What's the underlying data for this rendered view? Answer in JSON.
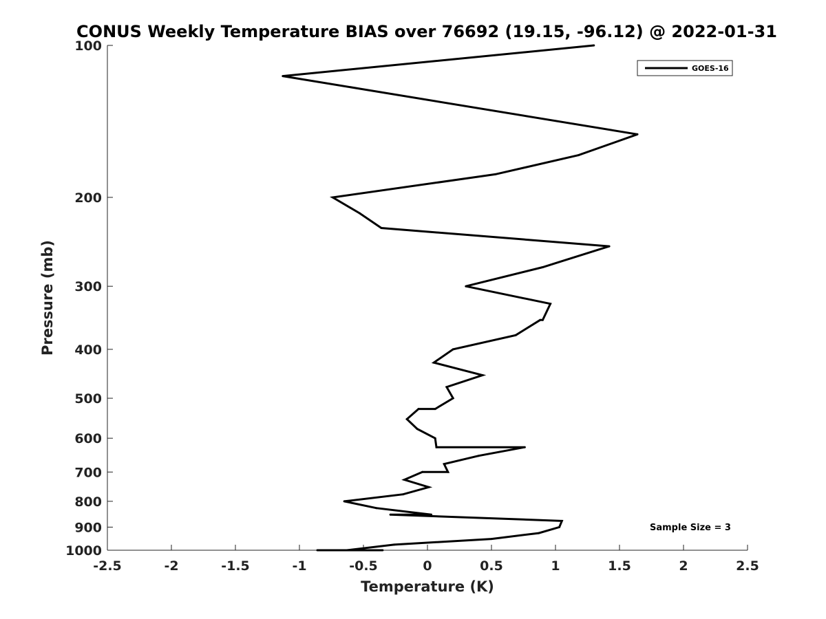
{
  "chart_data": {
    "type": "line",
    "title": "CONUS Weekly Temperature BIAS over 76692 (19.15, -96.12) @ 2022-01-31",
    "xlabel": "Temperature (K)",
    "ylabel": "Pressure (mb)",
    "xlim": [
      -2.5,
      2.5
    ],
    "ylim": [
      100,
      1000
    ],
    "y_scale": "log",
    "y_reversed": true,
    "x_ticks": [
      "-2.5",
      "-2",
      "-1.5",
      "-1",
      "-0.5",
      "0",
      "0.5",
      "1",
      "1.5",
      "2",
      "2.5"
    ],
    "y_ticks": [
      "100",
      "200",
      "300",
      "400",
      "500",
      "600",
      "700",
      "800",
      "900",
      "1000"
    ],
    "grid": false,
    "legend_position": "top-right",
    "annotation": "Sample Size = 3",
    "series": [
      {
        "name": "GOES-16",
        "color": "#000000",
        "points": [
          {
            "x": 1.3,
            "y": 100
          },
          {
            "x": -1.13,
            "y": 115
          },
          {
            "x": 1.64,
            "y": 150
          },
          {
            "x": 1.18,
            "y": 165
          },
          {
            "x": 0.53,
            "y": 180
          },
          {
            "x": -0.74,
            "y": 200
          },
          {
            "x": -0.53,
            "y": 215
          },
          {
            "x": -0.36,
            "y": 230
          },
          {
            "x": 1.42,
            "y": 250
          },
          {
            "x": 0.9,
            "y": 275
          },
          {
            "x": 0.3,
            "y": 300
          },
          {
            "x": 0.96,
            "y": 325
          },
          {
            "x": 0.9,
            "y": 350
          },
          {
            "x": 0.88,
            "y": 350
          },
          {
            "x": 0.69,
            "y": 375
          },
          {
            "x": 0.2,
            "y": 400
          },
          {
            "x": 0.05,
            "y": 425
          },
          {
            "x": 0.43,
            "y": 450
          },
          {
            "x": 0.15,
            "y": 475
          },
          {
            "x": 0.2,
            "y": 500
          },
          {
            "x": 0.06,
            "y": 525
          },
          {
            "x": -0.07,
            "y": 525
          },
          {
            "x": -0.16,
            "y": 550
          },
          {
            "x": -0.08,
            "y": 575
          },
          {
            "x": 0.06,
            "y": 600
          },
          {
            "x": 0.07,
            "y": 625
          },
          {
            "x": 0.76,
            "y": 625
          },
          {
            "x": 0.4,
            "y": 650
          },
          {
            "x": 0.13,
            "y": 675
          },
          {
            "x": 0.16,
            "y": 700
          },
          {
            "x": -0.04,
            "y": 700
          },
          {
            "x": -0.18,
            "y": 725
          },
          {
            "x": 0.01,
            "y": 750
          },
          {
            "x": -0.19,
            "y": 775
          },
          {
            "x": -0.65,
            "y": 800
          },
          {
            "x": -0.4,
            "y": 825
          },
          {
            "x": 0.03,
            "y": 850
          },
          {
            "x": -0.29,
            "y": 850
          },
          {
            "x": 1.05,
            "y": 875
          },
          {
            "x": 1.03,
            "y": 900
          },
          {
            "x": 0.87,
            "y": 925
          },
          {
            "x": 0.5,
            "y": 950
          },
          {
            "x": -0.26,
            "y": 975
          },
          {
            "x": -0.63,
            "y": 1000
          },
          {
            "x": -0.86,
            "y": 1000
          },
          {
            "x": -0.35,
            "y": 1000
          },
          {
            "x": -0.45,
            "y": 1000
          }
        ]
      }
    ]
  }
}
